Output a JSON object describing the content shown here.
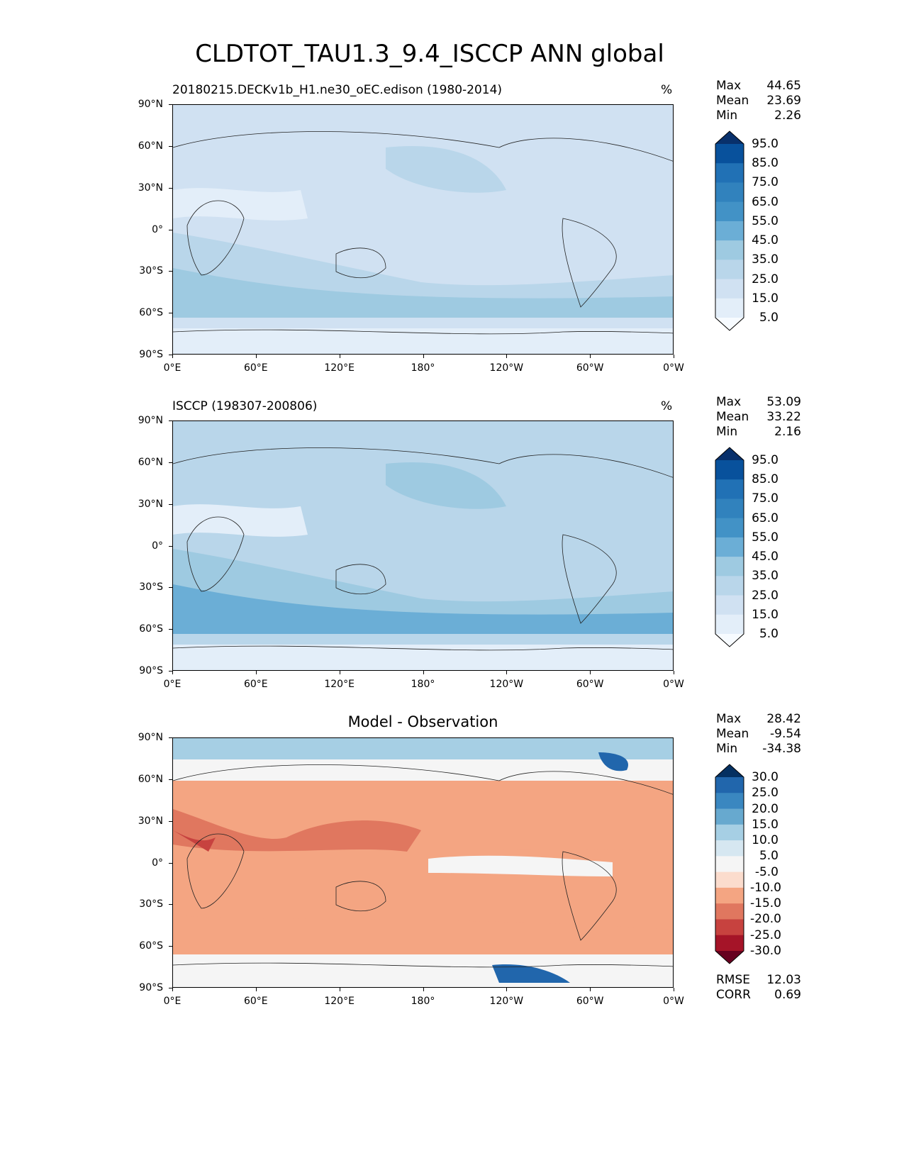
{
  "title": "CLDTOT_TAU1.3_9.4_ISCCP ANN global",
  "lat_ticks": [
    "90°N",
    "60°N",
    "30°N",
    "0°",
    "30°S",
    "60°S",
    "90°S"
  ],
  "lon_ticks": [
    "0°E",
    "60°E",
    "120°E",
    "180°",
    "120°W",
    "60°W",
    "0°W"
  ],
  "panels": [
    {
      "subtitle": "20180215.DECKv1b_H1.ne30_oEC.edison (1980-2014)",
      "units": "%",
      "stats": [
        {
          "k": "Max",
          "v": "44.65"
        },
        {
          "k": "Mean",
          "v": "23.69"
        },
        {
          "k": "Min",
          "v": "2.26"
        }
      ],
      "colorbar": {
        "labels": [
          "95.0",
          "85.0",
          "75.0",
          "65.0",
          "55.0",
          "45.0",
          "35.0",
          "25.0",
          "15.0",
          "5.0"
        ],
        "colors": [
          "#08306b",
          "#08519c",
          "#2171b5",
          "#3182bd",
          "#4292c6",
          "#6baed6",
          "#9ecae1",
          "#b9d6ea",
          "#d0e1f2",
          "#e3eef9",
          "#f7fbff"
        ]
      },
      "map_colors": [
        "#e3eef9",
        "#d0e1f2",
        "#b9d6ea",
        "#9ecae1"
      ]
    },
    {
      "subtitle": "ISCCP (198307-200806)",
      "units": "%",
      "stats": [
        {
          "k": "Max",
          "v": "53.09"
        },
        {
          "k": "Mean",
          "v": "33.22"
        },
        {
          "k": "Min",
          "v": "2.16"
        }
      ],
      "colorbar": {
        "labels": [
          "95.0",
          "85.0",
          "75.0",
          "65.0",
          "55.0",
          "45.0",
          "35.0",
          "25.0",
          "15.0",
          "5.0"
        ],
        "colors": [
          "#08306b",
          "#08519c",
          "#2171b5",
          "#3182bd",
          "#4292c6",
          "#6baed6",
          "#9ecae1",
          "#b9d6ea",
          "#d0e1f2",
          "#e3eef9",
          "#f7fbff"
        ]
      },
      "map_colors": [
        "#e3eef9",
        "#b9d6ea",
        "#9ecae1",
        "#6baed6"
      ]
    },
    {
      "subtitle": "Model - Observation",
      "stats": [
        {
          "k": "Max",
          "v": "28.42"
        },
        {
          "k": "Mean",
          "v": "-9.54"
        },
        {
          "k": "Min",
          "v": "-34.38"
        }
      ],
      "colorbar": {
        "labels": [
          "30.0",
          "25.0",
          "20.0",
          "15.0",
          "10.0",
          "5.0",
          "-5.0",
          "-10.0",
          "-15.0",
          "-20.0",
          "-25.0",
          "-30.0"
        ],
        "colors": [
          "#053061",
          "#2166ac",
          "#3a87c0",
          "#67a9cf",
          "#a6cfe4",
          "#d6e7f1",
          "#f5f5f5",
          "#fbdccd",
          "#f4a582",
          "#e0775f",
          "#c7423f",
          "#a51428",
          "#67001f"
        ]
      },
      "map_colors": [
        "#fbdccd",
        "#f4a582",
        "#e0775f",
        "#c7423f",
        "#f5f5f5",
        "#a6cfe4",
        "#2166ac"
      ],
      "extra": [
        {
          "k": "RMSE",
          "v": "12.03"
        },
        {
          "k": "CORR",
          "v": "0.69"
        }
      ]
    }
  ]
}
